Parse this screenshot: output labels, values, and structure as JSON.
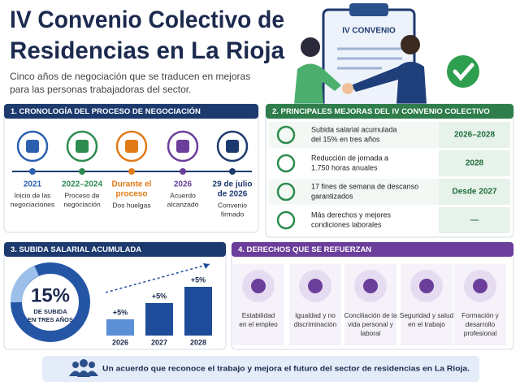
{
  "header": {
    "title": [
      "IV Convenio Colectivo de",
      "Residencias en La Rioja"
    ],
    "subtitle": [
      "Cinco años de negociación que se traducen en mejoras",
      "para las personas trabajadoras del sector."
    ],
    "clipboard": "IV CONVENIO"
  },
  "timeline": {
    "title": "1. CRONOLOGÍA DEL PROCESO DE NEGOCIACIÓN",
    "steps": [
      {
        "date": [
          "2021"
        ],
        "text": [
          "Inicio de las",
          "negociaciones"
        ]
      },
      {
        "date": [
          "2022–2024"
        ],
        "text": [
          "Proceso de",
          "negociación"
        ]
      },
      {
        "date": [
          "Durante el",
          "proceso"
        ],
        "text": [
          "Dos huelgas"
        ]
      },
      {
        "date": [
          "2026"
        ],
        "text": [
          "Acuerdo",
          "alcanzado"
        ]
      },
      {
        "date": [
          "29 de julio",
          "de 2026"
        ],
        "text": [
          "Convenio",
          "firmado"
        ]
      }
    ]
  },
  "improvements": {
    "title": "2. PRINCIPALES MEJORAS DEL IV CONVENIO COLECTIVO",
    "rows": [
      {
        "text": [
          "Subida salarial acumulada",
          "del 15% en tres años"
        ],
        "value": "2026–2028"
      },
      {
        "text": [
          "Reducción de jornada a",
          "1.750 horas anuales"
        ],
        "value": "2028"
      },
      {
        "text": [
          "17 fines de semana de descanso",
          "garantizados"
        ],
        "value": "Desde 2027"
      },
      {
        "text": [
          "Más derechos y mejores",
          "condiciones laborales"
        ],
        "value": "—"
      }
    ]
  },
  "salary": {
    "title": "3. SUBIDA SALARIAL ACUMULADA",
    "total": "15%",
    "total_caption": [
      "DE SUBIDA",
      "EN TRES AÑOS"
    ],
    "categories": [
      "2026",
      "2027",
      "2028"
    ],
    "values": [
      5,
      5,
      5
    ],
    "value_labels": [
      "+5%",
      "+5%",
      "+5%"
    ]
  },
  "rights": {
    "title": "4. DERECHOS QUE SE REFUERZAN",
    "items": [
      [
        "Estabilidad",
        "en el empleo"
      ],
      [
        "Igualdad y no",
        "discriminación"
      ],
      [
        "Conciliación de la",
        "vida personal y",
        "laboral"
      ],
      [
        "Seguridad y salud",
        "en el trabajo"
      ],
      [
        "Formación y",
        "desarrollo",
        "profesional"
      ]
    ]
  },
  "footer": "Un acuerdo que reconoce el trabajo y mejora el futuro del sector de residencias en La Rioja."
}
